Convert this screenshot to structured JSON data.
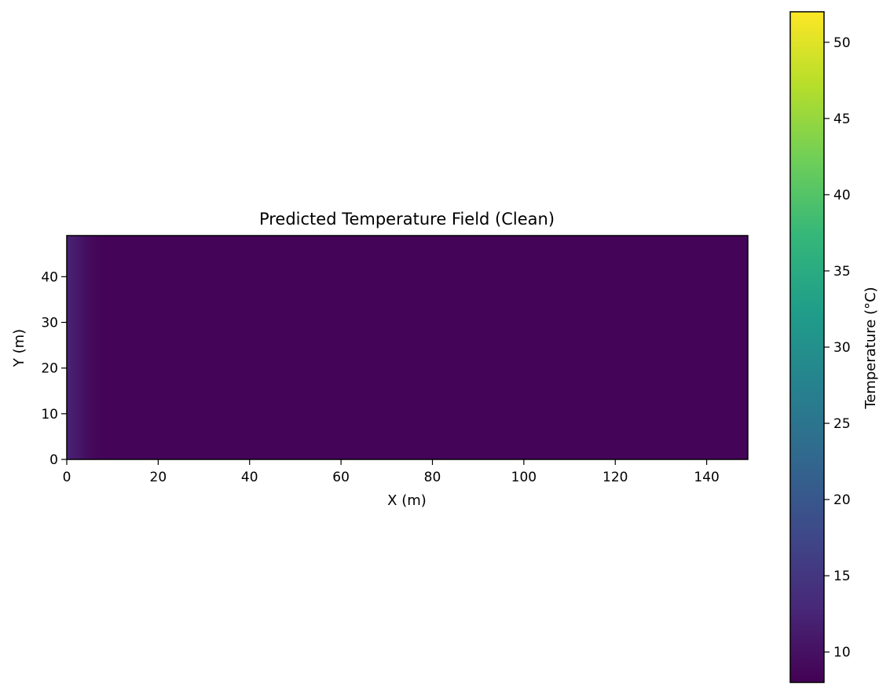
{
  "chart_data": {
    "type": "heatmap",
    "title": "Predicted Temperature Field (Clean)",
    "xlabel": "X (m)",
    "ylabel": "Y (m)",
    "xlim": [
      0,
      149
    ],
    "ylim": [
      0,
      49
    ],
    "xticks": [
      0,
      20,
      40,
      60,
      80,
      100,
      120,
      140
    ],
    "yticks": [
      0,
      10,
      20,
      30,
      40
    ],
    "grid": false,
    "colormap": "viridis",
    "colorbar": {
      "label": "Temperature (°C)",
      "range": [
        8,
        52
      ],
      "ticks": [
        10,
        15,
        20,
        25,
        30,
        35,
        40,
        45,
        50
      ]
    },
    "field_profile": {
      "description_axis": "x",
      "x": [
        0,
        1,
        2,
        3,
        4,
        5,
        6,
        7,
        8,
        149
      ],
      "value": [
        12.5,
        11.8,
        11.2,
        10.5,
        9.8,
        9.2,
        8.8,
        8.6,
        8.5,
        8.4
      ]
    }
  }
}
